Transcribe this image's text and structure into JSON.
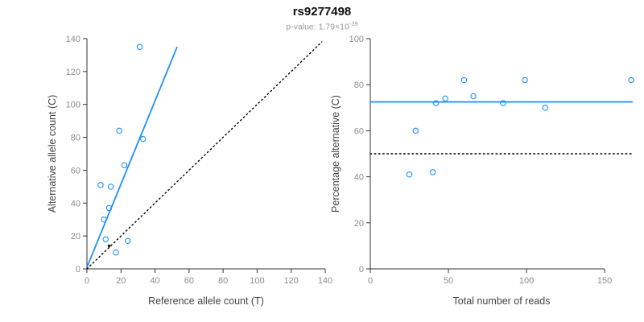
{
  "header": {
    "title": "rs9277498",
    "subtitle_prefix": "p-value: 1.79×10",
    "subtitle_exponent": "-39"
  },
  "palette": {
    "accent_blue": "#1E90FF",
    "line_black": "#000000",
    "axis_line": "#333333",
    "tick_label": "#8c8c8c",
    "axis_title": "#444444"
  },
  "chart_data": [
    {
      "id": "allele-count-scatter",
      "type": "scatter",
      "title": "",
      "xlabel": "Reference allele count (T)",
      "ylabel": "Alternative allele count (C)",
      "xlim": [
        0,
        140
      ],
      "ylim": [
        0,
        140
      ],
      "xticks": [
        0,
        20,
        40,
        60,
        80,
        100,
        120,
        140
      ],
      "yticks": [
        0,
        20,
        40,
        60,
        80,
        100,
        120,
        140
      ],
      "grid": false,
      "legend": "none",
      "points": [
        [
          31,
          135
        ],
        [
          19,
          84
        ],
        [
          33,
          79
        ],
        [
          22,
          63
        ],
        [
          8,
          51
        ],
        [
          14,
          50
        ],
        [
          13,
          37
        ],
        [
          10,
          30
        ],
        [
          11,
          18
        ],
        [
          24,
          17
        ],
        [
          17,
          10
        ]
      ],
      "filled_points": [
        [
          13,
          14
        ]
      ],
      "lines": [
        {
          "name": "regression-line",
          "x1": 0,
          "y1": 1,
          "x2": 53,
          "y2": 135,
          "color": "#1E90FF",
          "dash": "solid"
        },
        {
          "name": "identity-line",
          "x1": 0,
          "y1": 0,
          "x2": 138,
          "y2": 138,
          "color": "#000000",
          "dash": "dotted"
        }
      ]
    },
    {
      "id": "percentage-reads-scatter",
      "type": "scatter",
      "title": "",
      "xlabel": "Total number of reads",
      "ylabel": "Percentage alternative (C)",
      "xlim": [
        0,
        168
      ],
      "ylim": [
        0,
        100
      ],
      "xticks": [
        0,
        50,
        100,
        150
      ],
      "yticks": [
        0,
        20,
        40,
        60,
        80,
        100
      ],
      "grid": false,
      "legend": "none",
      "points": [
        [
          25,
          41
        ],
        [
          29,
          60
        ],
        [
          40,
          42
        ],
        [
          42,
          72
        ],
        [
          48,
          74
        ],
        [
          60,
          82
        ],
        [
          66,
          75
        ],
        [
          85,
          72
        ],
        [
          99,
          82
        ],
        [
          112,
          70
        ],
        [
          167,
          82
        ]
      ],
      "filled_points": [],
      "lines": [
        {
          "name": "mean-percentage-line",
          "x1": 0,
          "y1": 72.5,
          "x2": 168,
          "y2": 72.5,
          "color": "#1E90FF",
          "dash": "solid"
        },
        {
          "name": "fifty-percent-line",
          "x1": 0,
          "y1": 50,
          "x2": 168,
          "y2": 50,
          "color": "#000000",
          "dash": "dotted"
        }
      ]
    }
  ]
}
